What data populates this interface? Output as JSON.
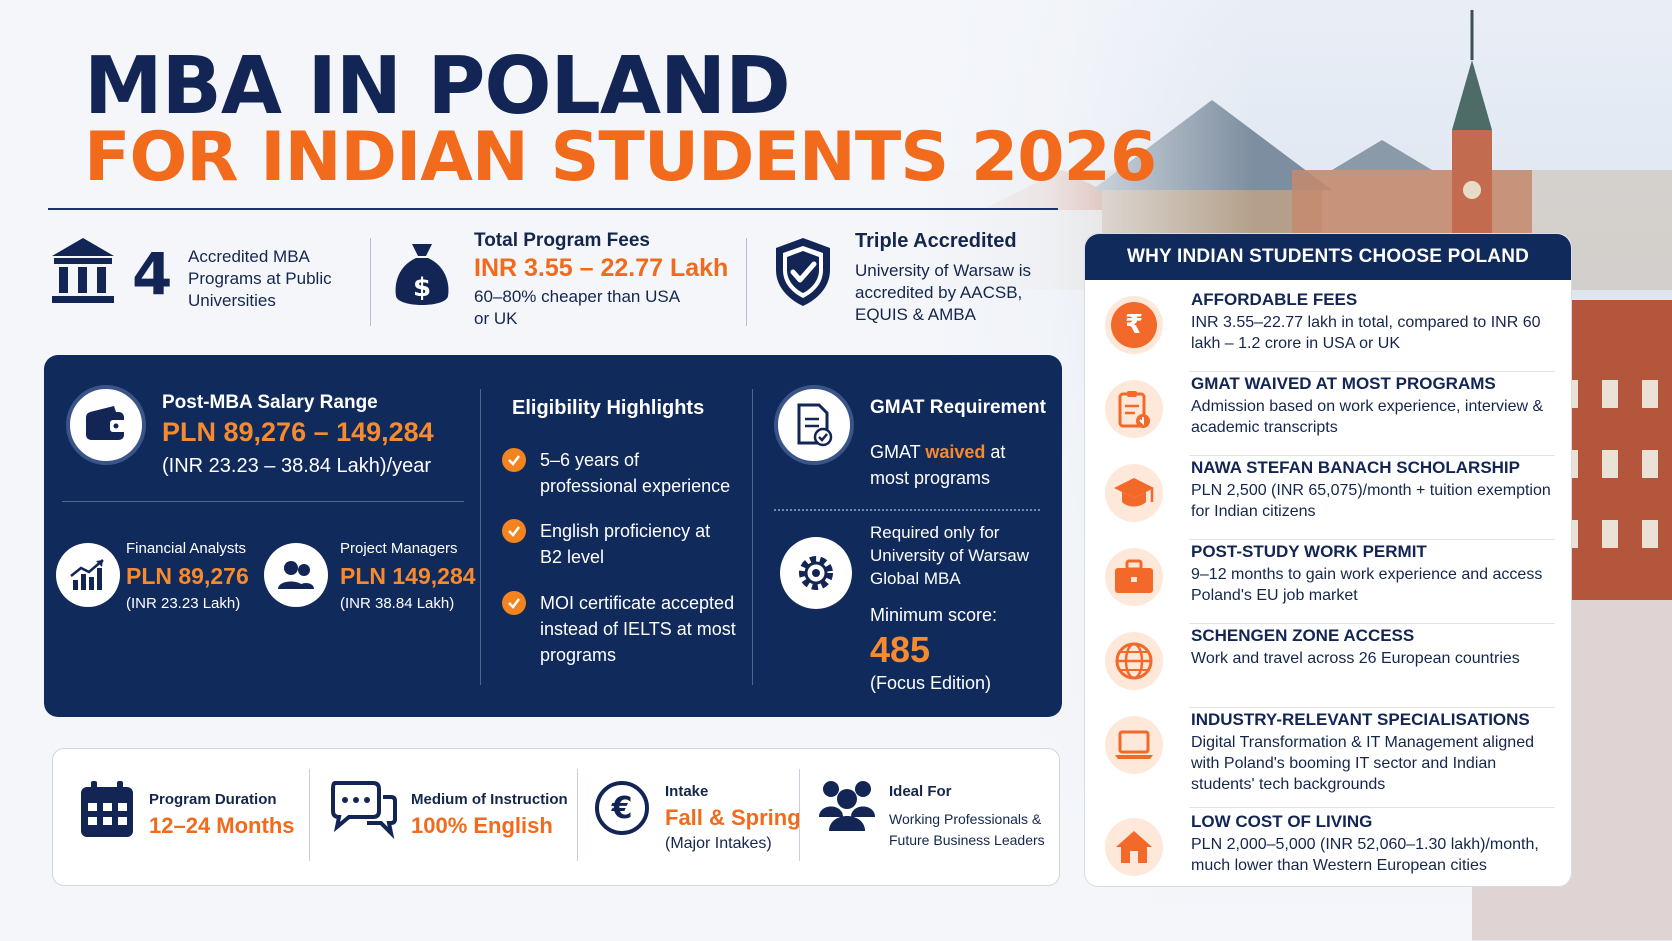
{
  "title": {
    "line1": "MBA IN POLAND",
    "line2": "FOR INDIAN STUDENTS 2026"
  },
  "stats": {
    "programs": {
      "number": "4",
      "label": "Accredited MBA Programs at Public Universities",
      "icon": "bank-icon"
    },
    "fees": {
      "heading": "Total Program Fees",
      "value": "INR 3.55 – 22.77 Lakh",
      "note": "60–80% cheaper than USA or UK",
      "icon": "money-bag-icon"
    },
    "accreditation": {
      "heading": "Triple Accredited",
      "text": "University of Warsaw is accredited by AACSB, EQUIS & AMBA",
      "icon": "shield-check-icon"
    }
  },
  "salary": {
    "heading": "Post-MBA Salary Range",
    "range": "PLN 89,276 – 149,284",
    "inr": "(INR 23.23 – 38.84 Lakh)/year",
    "roles": [
      {
        "title": "Financial Analysts",
        "pln": "PLN 89,276",
        "inr": "(INR 23.23 Lakh)"
      },
      {
        "title": "Project Managers",
        "pln": "PLN 149,284",
        "inr": "(INR 38.84 Lakh)"
      }
    ]
  },
  "eligibility": {
    "heading": "Eligibility Highlights",
    "items": [
      "5–6 years of professional experience",
      "English proficiency at B2 level",
      "MOI certificate accepted instead of IELTS at most programs"
    ]
  },
  "gmat": {
    "heading": "GMAT Requirement",
    "text_pre": "GMAT ",
    "text_hl": "waived",
    "text_post": " at most programs",
    "required": "Required only for University of Warsaw Global MBA",
    "min_label": "Minimum score:",
    "score": "485",
    "edition": "(Focus Edition)"
  },
  "facts": [
    {
      "label": "Program Duration",
      "value": "12–24 Months",
      "icon": "calendar-icon"
    },
    {
      "label": "Medium of Instruction",
      "value": "100% English",
      "icon": "chat-bubbles-icon"
    },
    {
      "label": "Intake",
      "value": "Fall & Spring",
      "sub": "(Major Intakes)",
      "icon": "euro-icon"
    },
    {
      "label": "Ideal For",
      "sub": "Working Professionals & Future Business Leaders",
      "icon": "people-icon"
    }
  ],
  "why": {
    "heading": "WHY INDIAN STUDENTS CHOOSE POLAND",
    "items": [
      {
        "title": "AFFORDABLE FEES",
        "desc": "INR 3.55–22.77 lakh in total, compared to INR 60 lakh – 1.2 crore in USA or UK",
        "icon": "rupee-icon"
      },
      {
        "title": "GMAT WAIVED AT MOST PROGRAMS",
        "desc": "Admission based on work experience, interview & academic transcripts",
        "icon": "clipboard-icon"
      },
      {
        "title": "NAWA STEFAN BANACH SCHOLARSHIP",
        "desc": "PLN 2,500 (INR 65,075)/month + tuition exemption for Indian citizens",
        "icon": "graduation-cap-icon"
      },
      {
        "title": "POST-STUDY WORK PERMIT",
        "desc": "9–12 months to gain work experience and access Poland's EU job market",
        "icon": "briefcase-icon"
      },
      {
        "title": "SCHENGEN ZONE ACCESS",
        "desc": "Work and travel across 26 European countries",
        "icon": "globe-icon"
      },
      {
        "title": "INDUSTRY-RELEVANT SPECIALISATIONS",
        "desc": "Digital Transformation & IT Management aligned with Poland's booming IT sector and Indian students' tech backgrounds",
        "icon": "laptop-icon"
      },
      {
        "title": "LOW COST OF LIVING",
        "desc": "PLN 2,000–5,000 (INR 52,060–1.30 lakh)/month, much lower than Western European cities",
        "icon": "house-icon"
      }
    ]
  },
  "colors": {
    "navy": "#112a5c",
    "orange": "#f26a1b"
  }
}
